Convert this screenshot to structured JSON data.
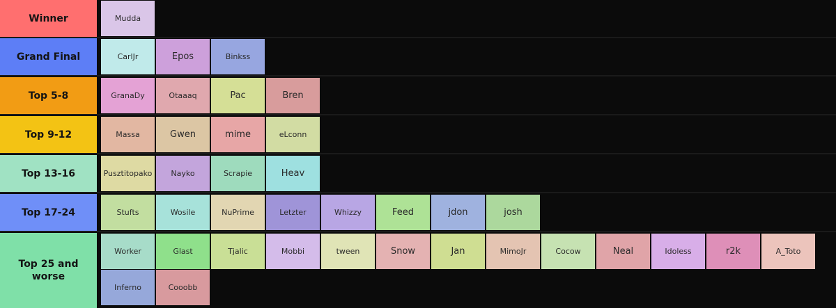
{
  "tiers": [
    {
      "label": "Winner",
      "color": "#ff6f6f",
      "items": [
        {
          "name": "Mudda",
          "color": "#dac6e8"
        }
      ]
    },
    {
      "label": "Grand Final",
      "color": "#5d7ef6",
      "items": [
        {
          "name": "CarlJr",
          "color": "#c0eaea"
        },
        {
          "name": "Epos",
          "color": "#cda0db"
        },
        {
          "name": "Binkss",
          "color": "#97a6e0"
        }
      ]
    },
    {
      "label": "Top 5-8",
      "color": "#f29c14",
      "items": [
        {
          "name": "GranaDy",
          "color": "#e4a2d5"
        },
        {
          "name": "Otaaaq",
          "color": "#e0a8ae"
        },
        {
          "name": "Pac",
          "color": "#d5df96"
        },
        {
          "name": "Bren",
          "color": "#d89c9c"
        }
      ]
    },
    {
      "label": "Top 9-12",
      "color": "#f3c314",
      "items": [
        {
          "name": "Massa",
          "color": "#e2b7a2"
        },
        {
          "name": "Gwen",
          "color": "#dcc6a4"
        },
        {
          "name": "mime",
          "color": "#e7a6a6"
        },
        {
          "name": "eLconn",
          "color": "#d2dca3"
        }
      ]
    },
    {
      "label": "Top 13-16",
      "color": "#a0e2c3",
      "items": [
        {
          "name": "Pusztitopako",
          "color": "#dedaa3"
        },
        {
          "name": "Nayko",
          "color": "#c3a5dc"
        },
        {
          "name": "Scrapie",
          "color": "#9edbbd"
        },
        {
          "name": "Heav",
          "color": "#9ee0e0"
        }
      ]
    },
    {
      "label": "Top 17-24",
      "color": "#6f8ff8",
      "items": [
        {
          "name": "Stufts",
          "color": "#c2dea0"
        },
        {
          "name": "Wosile",
          "color": "#a7e2da"
        },
        {
          "name": "NuPrime",
          "color": "#e2d6b2"
        },
        {
          "name": "Letzter",
          "color": "#9f94d8"
        },
        {
          "name": "Whizzy",
          "color": "#b8a6e4"
        },
        {
          "name": "Feed",
          "color": "#aee296"
        },
        {
          "name": "jdon",
          "color": "#9fb2df"
        },
        {
          "name": "josh",
          "color": "#acd89d"
        }
      ]
    },
    {
      "label": "Top 25 and worse",
      "color": "#7fe0a8",
      "items": [
        {
          "name": "Worker",
          "color": "#a7dcc9"
        },
        {
          "name": "Glast",
          "color": "#8fe08b"
        },
        {
          "name": "Tjalic",
          "color": "#c9df96"
        },
        {
          "name": "Mobbi",
          "color": "#d4bcea"
        },
        {
          "name": "tween",
          "color": "#e0e4b6"
        },
        {
          "name": "Snow",
          "color": "#e4b2b2"
        },
        {
          "name": "Jan",
          "color": "#cfde92"
        },
        {
          "name": "MimoJr",
          "color": "#e4c4b2"
        },
        {
          "name": "Cocow",
          "color": "#c6e2b2"
        },
        {
          "name": "Neal",
          "color": "#e0a4a8"
        },
        {
          "name": "Idoless",
          "color": "#d8aee8"
        },
        {
          "name": "r2k",
          "color": "#de8fb8"
        },
        {
          "name": "A_Toto",
          "color": "#ecc4bc"
        },
        {
          "name": "Inferno",
          "color": "#96a8da"
        },
        {
          "name": "Cooobb",
          "color": "#d89a9e"
        }
      ]
    }
  ]
}
